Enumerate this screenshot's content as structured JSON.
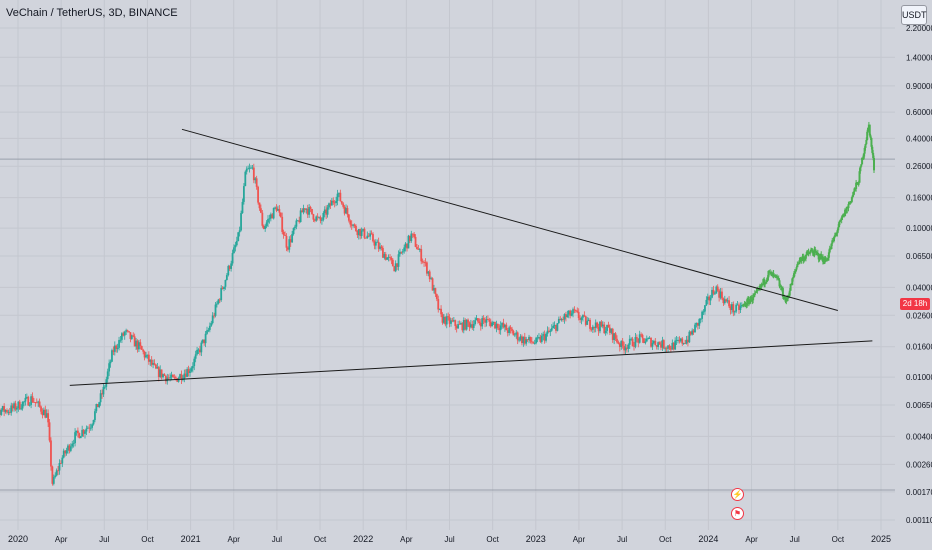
{
  "header": {
    "title": "VeChain / TetherUS, 3D, BINANCE",
    "unit_label": "USDT"
  },
  "price_tag": "2d 18h",
  "events": {
    "icon_1": "lightning-icon",
    "icon_2": "flag-icon"
  },
  "colors": {
    "background": "#d1d4dc",
    "grid": "#c4c7cf",
    "up": "#26a69a",
    "down": "#ef5350",
    "projection": "#4caf50",
    "trendline": "#1a1a1a",
    "axis_text": "#131722",
    "price_tag": "#f23645"
  },
  "chart_data": {
    "type": "candlestick",
    "title": "VeChain / TetherUS, 3D, BINANCE",
    "y_scale": "log",
    "ylim": [
      0.0011,
      2.2
    ],
    "y_ticks": [
      2.2,
      1.4,
      0.9,
      0.6,
      0.4,
      0.26,
      0.16,
      0.1,
      0.065,
      0.04,
      0.026,
      0.016,
      0.01,
      0.0065,
      0.004,
      0.0026,
      0.0017,
      0.0011
    ],
    "y_tick_labels": [
      "2.20000",
      "1.40000",
      "0.90000",
      "0.60000",
      "0.40000",
      "0.26000",
      "0.16000",
      "0.10000",
      "0.06500",
      "0.04000",
      "0.02600",
      "0.01600",
      "0.01000",
      "0.00650",
      "0.00400",
      "0.00260",
      "0.00170",
      "0.00110"
    ],
    "x_ticks": [
      2020,
      2020.25,
      2020.5,
      2020.75,
      2021,
      2021.25,
      2021.5,
      2021.75,
      2022,
      2022.25,
      2022.5,
      2022.75,
      2023,
      2023.25,
      2023.5,
      2023.75,
      2024,
      2024.25,
      2024.5,
      2024.75,
      2025
    ],
    "x_tick_labels": [
      "2020",
      "Apr",
      "Jul",
      "Oct",
      "2021",
      "Apr",
      "Jul",
      "Oct",
      "2022",
      "Apr",
      "Jul",
      "Oct",
      "2023",
      "Apr",
      "Jul",
      "Oct",
      "2024",
      "Apr",
      "Jul",
      "Oct",
      "2025"
    ],
    "xlim": [
      1999.85,
      2025.1
    ],
    "grid": true,
    "price_path": [
      [
        1999.85,
        0.0072
      ],
      [
        2019.95,
        0.006
      ],
      [
        2020.08,
        0.0072
      ],
      [
        2020.17,
        0.0055
      ],
      [
        2020.2,
        0.0019
      ],
      [
        2020.25,
        0.0028
      ],
      [
        2020.33,
        0.004
      ],
      [
        2020.42,
        0.0048
      ],
      [
        2020.5,
        0.0085
      ],
      [
        2020.55,
        0.015
      ],
      [
        2020.62,
        0.02
      ],
      [
        2020.7,
        0.016
      ],
      [
        2020.8,
        0.011
      ],
      [
        2020.9,
        0.0095
      ],
      [
        2021.0,
        0.0115
      ],
      [
        2021.1,
        0.02
      ],
      [
        2021.2,
        0.045
      ],
      [
        2021.28,
        0.09
      ],
      [
        2021.32,
        0.24
      ],
      [
        2021.36,
        0.25
      ],
      [
        2021.42,
        0.1
      ],
      [
        2021.5,
        0.14
      ],
      [
        2021.56,
        0.075
      ],
      [
        2021.66,
        0.14
      ],
      [
        2021.75,
        0.11
      ],
      [
        2021.85,
        0.17
      ],
      [
        2021.95,
        0.1
      ],
      [
        2022.05,
        0.085
      ],
      [
        2022.18,
        0.055
      ],
      [
        2022.28,
        0.09
      ],
      [
        2022.38,
        0.05
      ],
      [
        2022.45,
        0.025
      ],
      [
        2022.55,
        0.022
      ],
      [
        2022.7,
        0.024
      ],
      [
        2022.8,
        0.022
      ],
      [
        2022.92,
        0.018
      ],
      [
        2023.0,
        0.017
      ],
      [
        2023.08,
        0.02
      ],
      [
        2023.16,
        0.025
      ],
      [
        2023.22,
        0.027
      ],
      [
        2023.3,
        0.023
      ],
      [
        2023.42,
        0.021
      ],
      [
        2023.5,
        0.016
      ],
      [
        2023.6,
        0.018
      ],
      [
        2023.7,
        0.017
      ],
      [
        2023.78,
        0.016
      ],
      [
        2023.88,
        0.018
      ],
      [
        2023.95,
        0.024
      ],
      [
        2024.0,
        0.033
      ],
      [
        2024.04,
        0.04
      ],
      [
        2024.1,
        0.032
      ],
      [
        2024.15,
        0.028
      ],
      [
        2024.2,
        0.03
      ]
    ],
    "projection_path": [
      [
        2024.2,
        0.03
      ],
      [
        2024.28,
        0.036
      ],
      [
        2024.35,
        0.05
      ],
      [
        2024.4,
        0.045
      ],
      [
        2024.45,
        0.032
      ],
      [
        2024.52,
        0.06
      ],
      [
        2024.6,
        0.07
      ],
      [
        2024.68,
        0.06
      ],
      [
        2024.75,
        0.1
      ],
      [
        2024.82,
        0.15
      ],
      [
        2024.87,
        0.21
      ],
      [
        2024.9,
        0.33
      ],
      [
        2024.93,
        0.49
      ],
      [
        2024.96,
        0.25
      ]
    ],
    "trendlines": [
      {
        "x1": 2020.95,
        "y1": 0.46,
        "x2": 2024.75,
        "y2": 0.028
      },
      {
        "x1": 2020.3,
        "y1": 0.0088,
        "x2": 2024.95,
        "y2": 0.0175
      }
    ],
    "hlines": [
      0.29,
      0.00175
    ]
  }
}
